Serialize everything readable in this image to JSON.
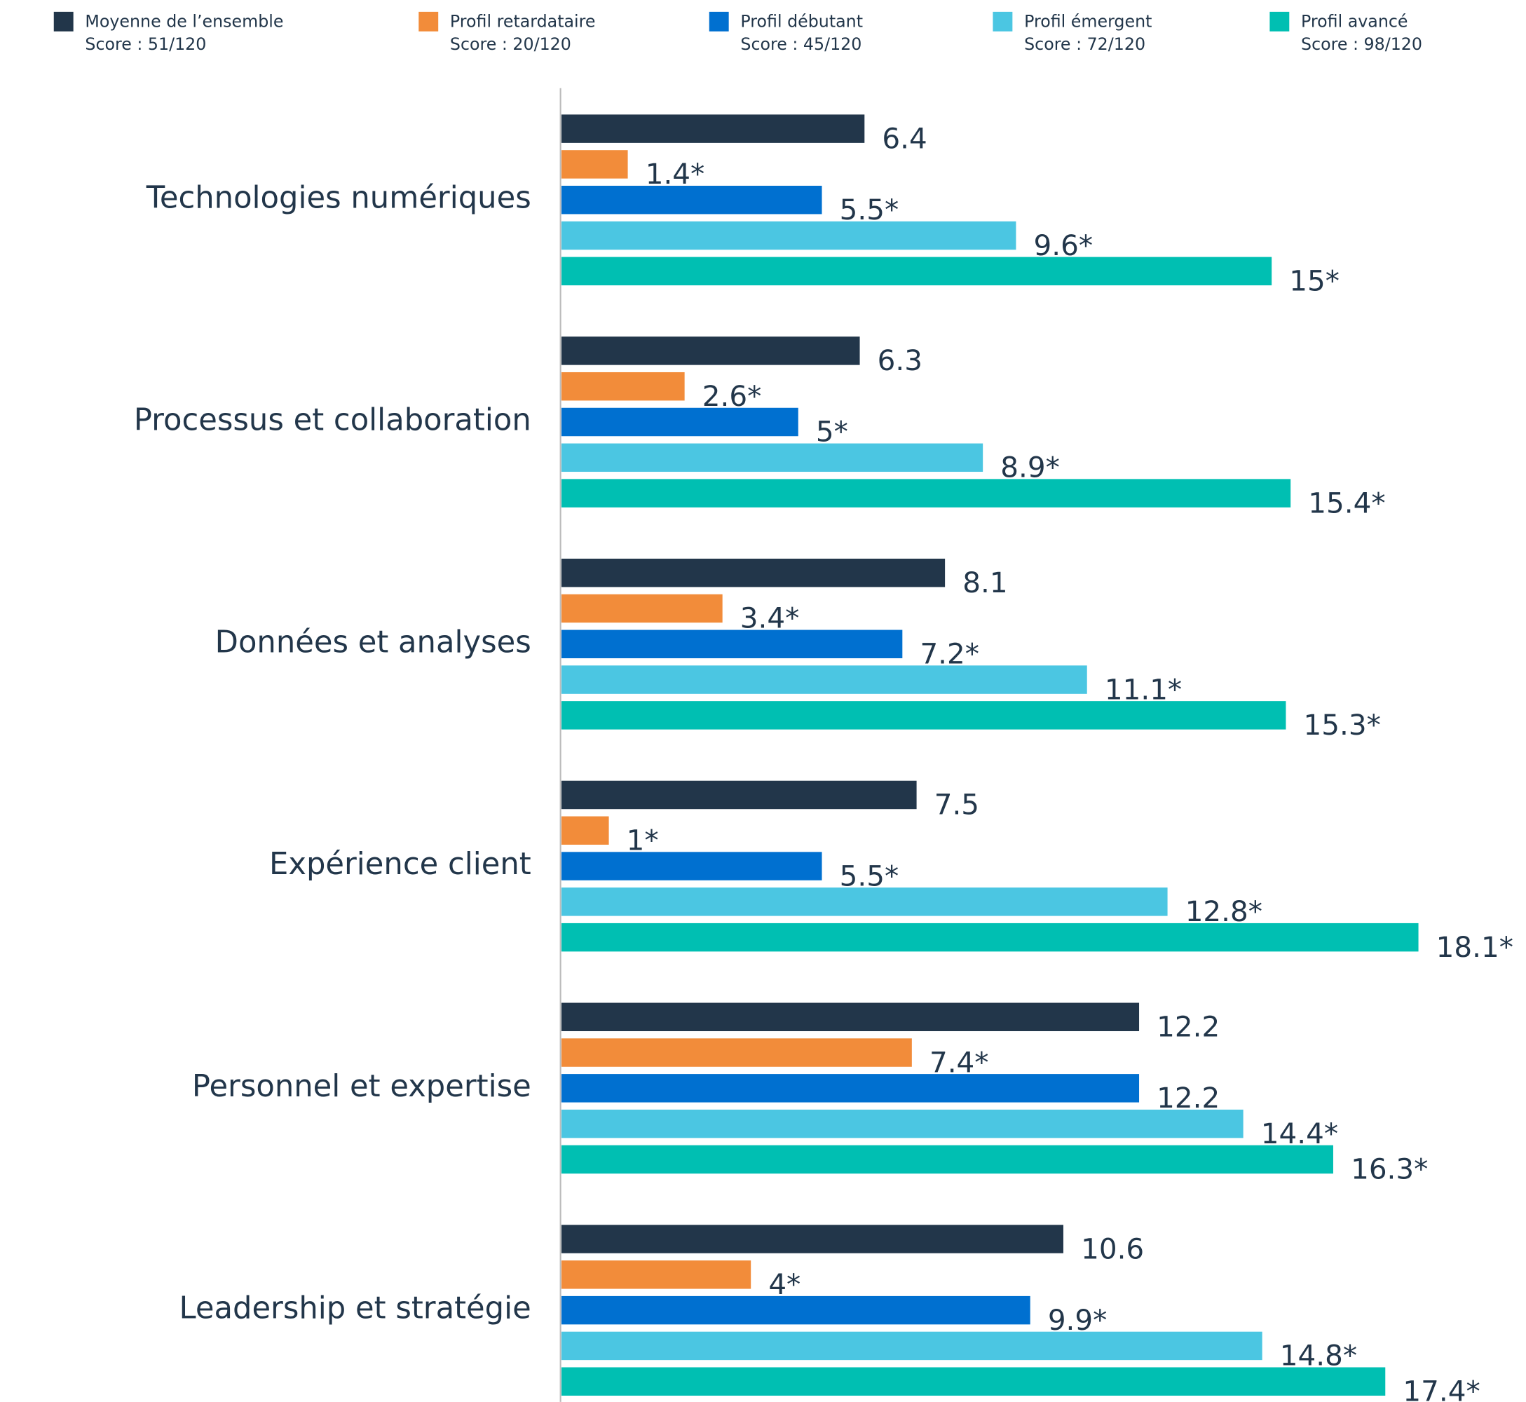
{
  "chart_data": {
    "type": "hbar",
    "categories": [
      "Technologies numériques",
      "Processus et collaboration",
      "Données et analyses",
      "Expérience client",
      "Personnel et expertise",
      "Leadership et stratégie"
    ],
    "xlim": [
      0,
      20
    ],
    "series": [
      {
        "name": "Moyenne de l’ensemble",
        "legend_note": "Score : 51/120",
        "color": "#22364a",
        "values": [
          6.4,
          6.3,
          8.1,
          7.5,
          12.2,
          10.6
        ],
        "value_labels": [
          "6.4",
          "6.3",
          "8.1",
          "7.5",
          "12.2",
          "10.6"
        ]
      },
      {
        "name": "Profil retardataire",
        "legend_note": "Score : 20/120",
        "color": "#f28c3a",
        "values": [
          1.4,
          2.6,
          3.4,
          1,
          7.4,
          4
        ],
        "value_labels": [
          "1.4*",
          "2.6*",
          "3.4*",
          "1*",
          "7.4*",
          "4*"
        ]
      },
      {
        "name": "Profil débutant",
        "legend_note": "Score : 45/120",
        "color": "#0070d0",
        "values": [
          5.5,
          5,
          7.2,
          5.5,
          12.2,
          9.9
        ],
        "value_labels": [
          "5.5*",
          "5*",
          "7.2*",
          "5.5*",
          "12.2",
          "9.9*"
        ]
      },
      {
        "name": "Profil émergent",
        "legend_note": "Score : 72/120",
        "color": "#4bc6e2",
        "values": [
          9.6,
          8.9,
          11.1,
          12.8,
          14.4,
          14.8
        ],
        "value_labels": [
          "9.6*",
          "8.9*",
          "11.1*",
          "12.8*",
          "14.4*",
          "14.8*"
        ]
      },
      {
        "name": "Profil avancé",
        "legend_note": "Score : 98/120",
        "color": "#00bfb2",
        "values": [
          15,
          15.4,
          15.3,
          18.1,
          16.3,
          17.4
        ],
        "value_labels": [
          "15*",
          "15.4*",
          "15.3*",
          "18.1*",
          "16.3*",
          "17.4*"
        ]
      }
    ]
  }
}
